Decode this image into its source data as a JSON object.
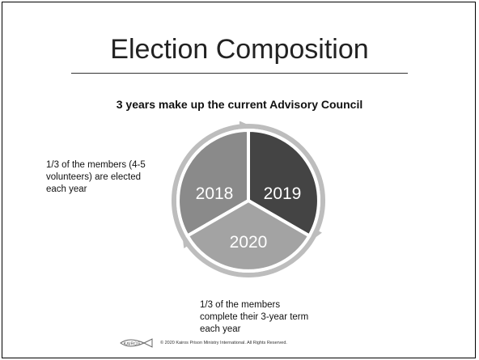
{
  "slide": {
    "title": "Election Composition",
    "subtitle": "3 years make up the current Advisory Council",
    "note_left": "1/3 of the members (4-5 volunteers) are elected each year",
    "note_bottom": "1/3 of the members complete their 3-year term each year",
    "cycle": {
      "segments": [
        {
          "label": "2018",
          "color": "#8a8a8a"
        },
        {
          "label": "2019",
          "color": "#444444"
        },
        {
          "label": "2020",
          "color": "#a3a3a3"
        }
      ],
      "arrow_color": "#bdbdbd"
    },
    "footer": {
      "logo_text": "KAIROS",
      "copyright": "© 2020 Kairos Prison Ministry International. All Rights Reserved."
    }
  }
}
